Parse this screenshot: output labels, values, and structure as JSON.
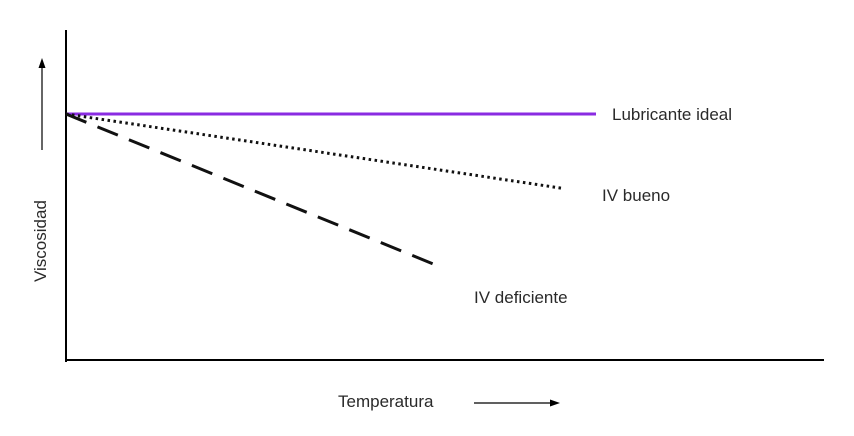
{
  "chart_data": {
    "type": "line",
    "title": "",
    "xlabel": "Temperatura",
    "ylabel": "Viscosidad",
    "grid": false,
    "legend": "none",
    "x": [
      0,
      1
    ],
    "series": [
      {
        "name": "Lubricante ideal",
        "values": [
          1.0,
          1.0
        ],
        "style": "solid",
        "color": "#8a2be2",
        "x_end": 1.0
      },
      {
        "name": "IV bueno",
        "values": [
          1.0,
          0.67
        ],
        "style": "dotted",
        "color": "#111111",
        "x_end": 0.94
      },
      {
        "name": "IV deficiente",
        "values": [
          1.0,
          0.32
        ],
        "style": "dashed",
        "color": "#111111",
        "x_end": 0.71
      }
    ],
    "xlim": [
      0,
      1
    ],
    "ylim": [
      0,
      1
    ]
  }
}
